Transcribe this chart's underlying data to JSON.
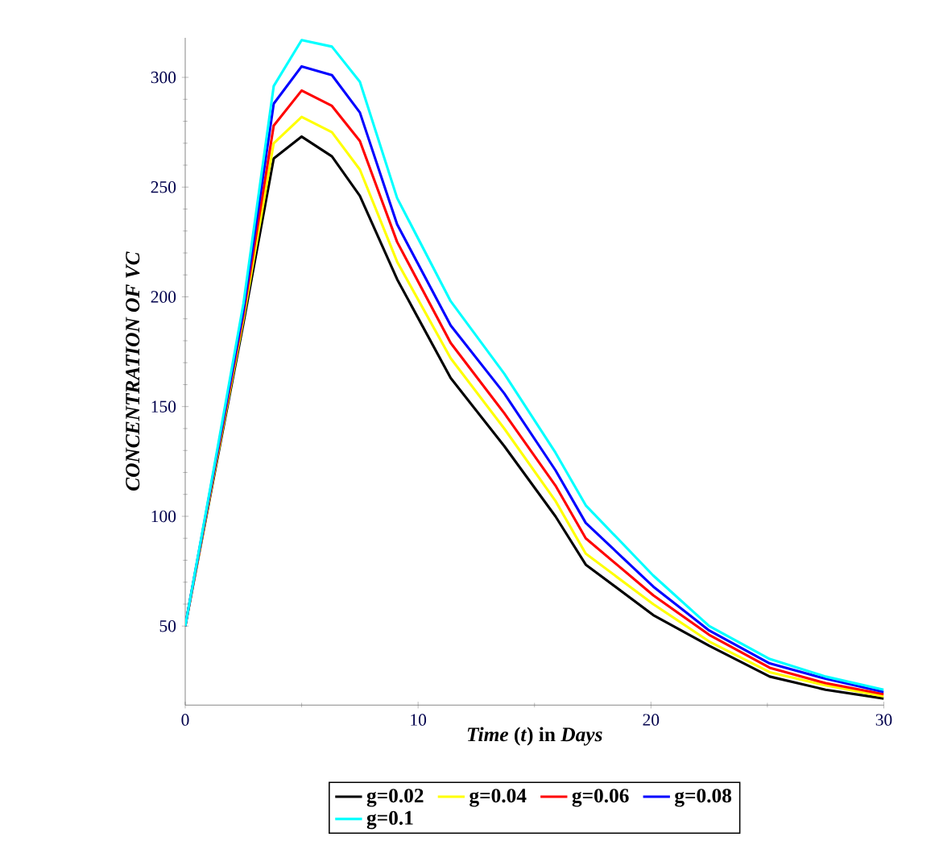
{
  "chart_data": {
    "type": "line",
    "xlabel": "*Time* (*t*) in *Days*",
    "ylabel": "CONCENTRATION OF VC",
    "x": [
      0,
      1.25,
      2.5,
      3.8,
      5,
      6.3,
      7.5,
      9.1,
      11.4,
      13.7,
      15.9,
      17.2,
      20.1,
      22.5,
      25.1,
      27.5,
      30
    ],
    "series": [
      {
        "name": "g=0.02",
        "color": "#000000",
        "values": [
          50,
          119,
          188,
          263,
          273,
          264,
          246,
          208,
          163,
          132,
          100,
          78,
          55,
          41,
          27,
          21,
          17
        ]
      },
      {
        "name": "g=0.04",
        "color": "#ffff00",
        "values": [
          50,
          120,
          190,
          270,
          282,
          275,
          258,
          216,
          172,
          140,
          107,
          83,
          60,
          43,
          29,
          23,
          18
        ]
      },
      {
        "name": "g=0.06",
        "color": "#ff0000",
        "values": [
          50,
          121,
          192,
          278,
          294,
          287,
          271,
          225,
          179,
          147,
          114,
          90,
          64,
          46,
          31,
          24,
          19
        ]
      },
      {
        "name": "g=0.08",
        "color": "#0000ff",
        "values": [
          50,
          122,
          194,
          288,
          305,
          301,
          284,
          233,
          187,
          156,
          121,
          97,
          68,
          48,
          33,
          26,
          20
        ]
      },
      {
        "name": "g=0.1",
        "color": "#00ffff",
        "values": [
          50,
          123,
          197,
          296,
          317,
          314,
          298,
          245,
          198,
          165,
          129,
          105,
          73,
          50,
          35,
          27,
          21
        ]
      }
    ],
    "xlim": [
      0,
      30
    ],
    "ylim": [
      14,
      318
    ],
    "xticks": [
      0,
      10,
      20,
      30
    ],
    "yticks": [
      50,
      100,
      150,
      200,
      250,
      300
    ],
    "legend": "bottom",
    "grid": false,
    "marker": "none",
    "line_style": "solid"
  }
}
